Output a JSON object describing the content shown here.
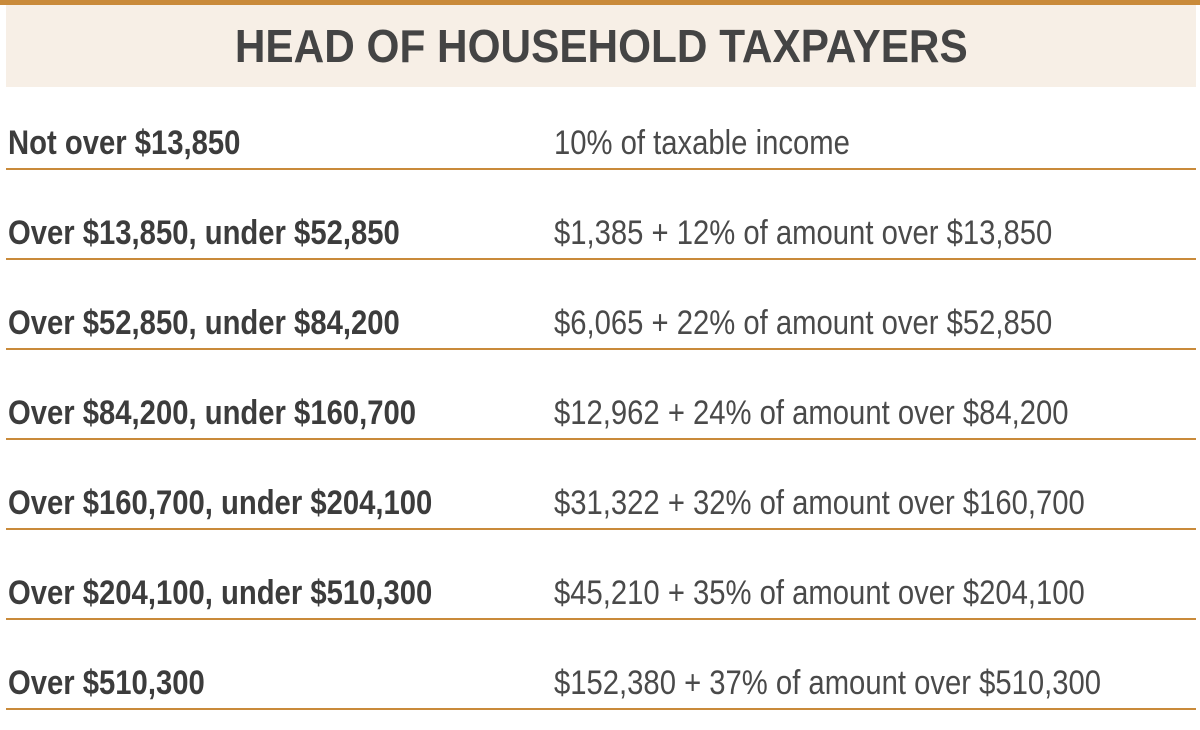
{
  "title": "HEAD OF HOUSEHOLD TAXPAYERS",
  "colors": {
    "accent": "#c98a3a",
    "title_band": "#f7efe6",
    "text": "#3a3a3a"
  },
  "brackets": [
    {
      "range": "Not over $13,850",
      "rate": "10% of taxable income"
    },
    {
      "range": "Over $13,850, under $52,850",
      "rate": "$1,385 + 12% of amount over $13,850"
    },
    {
      "range": "Over $52,850, under $84,200",
      "rate": "$6,065 + 22% of amount over $52,850"
    },
    {
      "range": "Over $84,200, under $160,700",
      "rate": "$12,962 + 24% of amount over $84,200"
    },
    {
      "range": "Over $160,700, under $204,100",
      "rate": "$31,322 + 32% of amount over $160,700"
    },
    {
      "range": "Over $204,100, under $510,300",
      "rate": "$45,210 + 35% of amount over $204,100"
    },
    {
      "range": "Over $510,300",
      "rate": "$152,380 + 37% of amount over $510,300"
    }
  ]
}
